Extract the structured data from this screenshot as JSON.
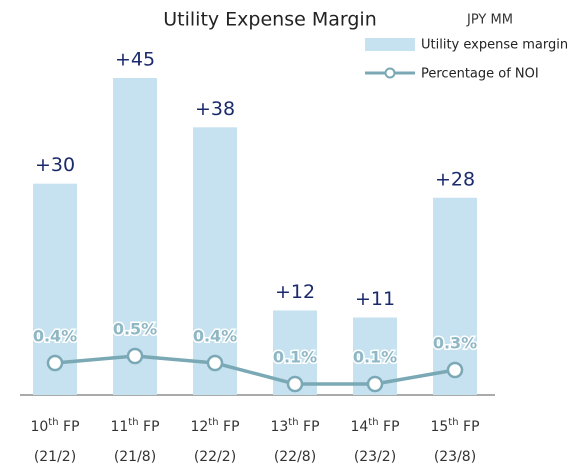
{
  "chart_data": {
    "type": "bar_line",
    "title": "Utility Expense Margin",
    "unit": "JPY MM",
    "categories": [
      "10th FP",
      "11th FP",
      "12th FP",
      "13th FP",
      "14th FP",
      "15th FP"
    ],
    "category_sublabels": [
      "(21/2)",
      "(21/8)",
      "(22/2)",
      "(22/8)",
      "(23/2)",
      "(23/8)"
    ],
    "series": [
      {
        "name": "Utility expense margin",
        "color": "#c6e1ef",
        "values": [
          30,
          45,
          38,
          12,
          11,
          28
        ],
        "value_labels": [
          "+30",
          "+45",
          "+38",
          "+12",
          "+11",
          "+28"
        ]
      },
      {
        "name": "Percentage of NOI",
        "color": "#7aa9b5",
        "axis": "y2",
        "values": [
          0.4,
          0.5,
          0.4,
          0.1,
          0.1,
          0.3
        ],
        "value_labels": [
          "0.4%",
          "0.5%",
          "0.4%",
          "0.1%",
          "0.1%",
          "0.3%"
        ]
      }
    ]
  }
}
